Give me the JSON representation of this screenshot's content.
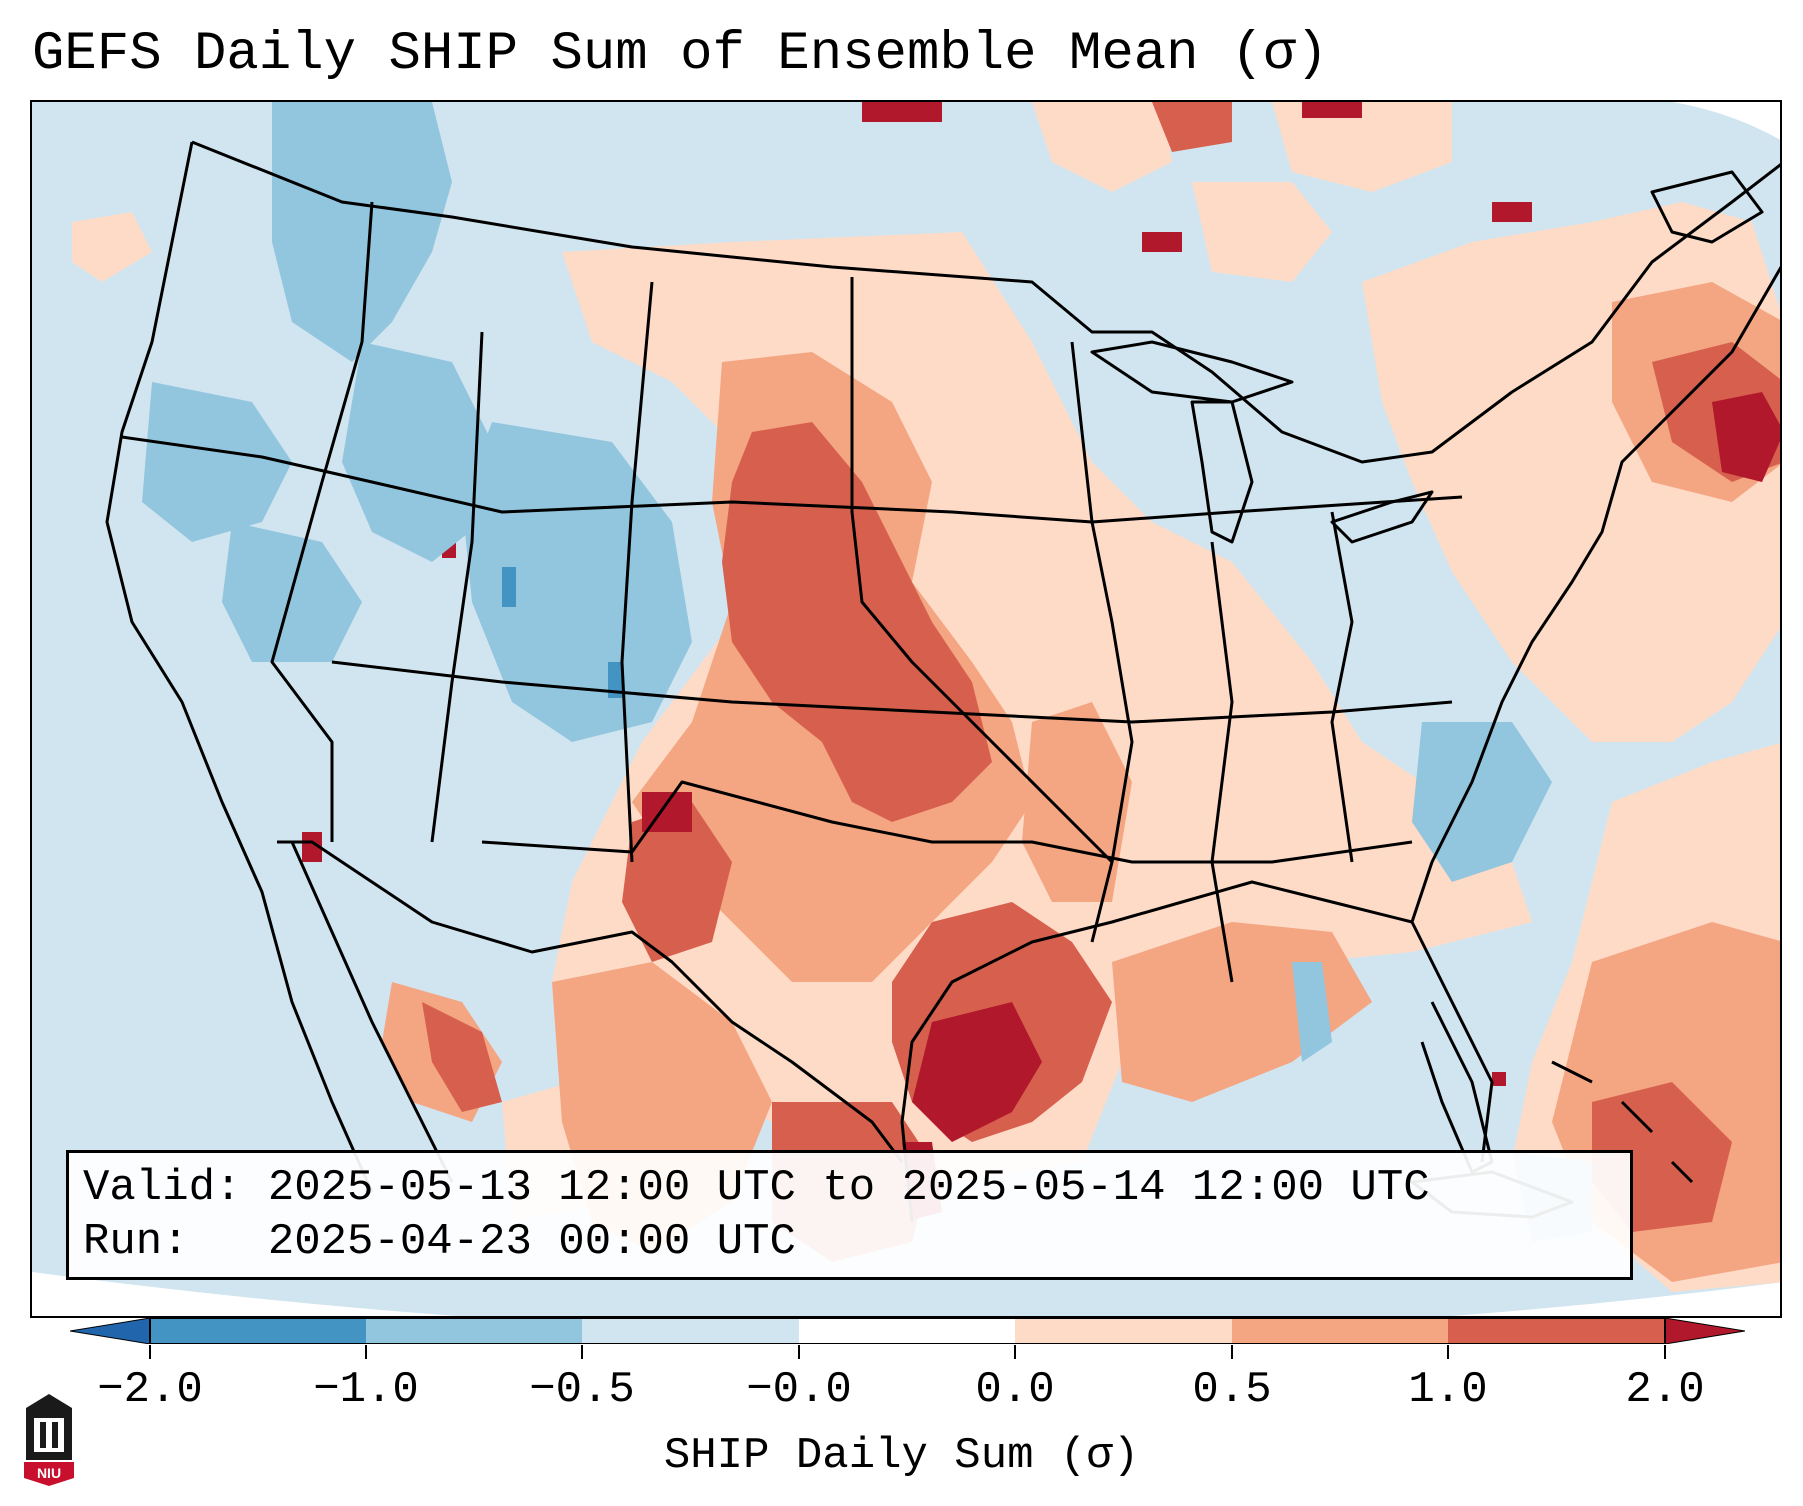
{
  "title": "GEFS Daily SHIP Sum of Ensemble Mean (σ)",
  "info_box": {
    "valid_label": "Valid:",
    "valid_value": "2025-05-13 12:00 UTC to 2025-05-14 12:00 UTC",
    "run_label": "Run:",
    "run_value": "2025-04-23 00:00 UTC"
  },
  "colorbar": {
    "label": "SHIP Daily Sum (σ)",
    "ticks": [
      "−2.0",
      "−1.0",
      "−0.5",
      "−0.0",
      "0.0",
      "0.5",
      "1.0",
      "2.0"
    ],
    "colors": [
      "#2166ac",
      "#4393c3",
      "#92c5de",
      "#d1e5f0",
      "#fddbc7",
      "#f4a582",
      "#d6604d",
      "#b2182b"
    ]
  },
  "logo": {
    "text": "NIU"
  }
}
